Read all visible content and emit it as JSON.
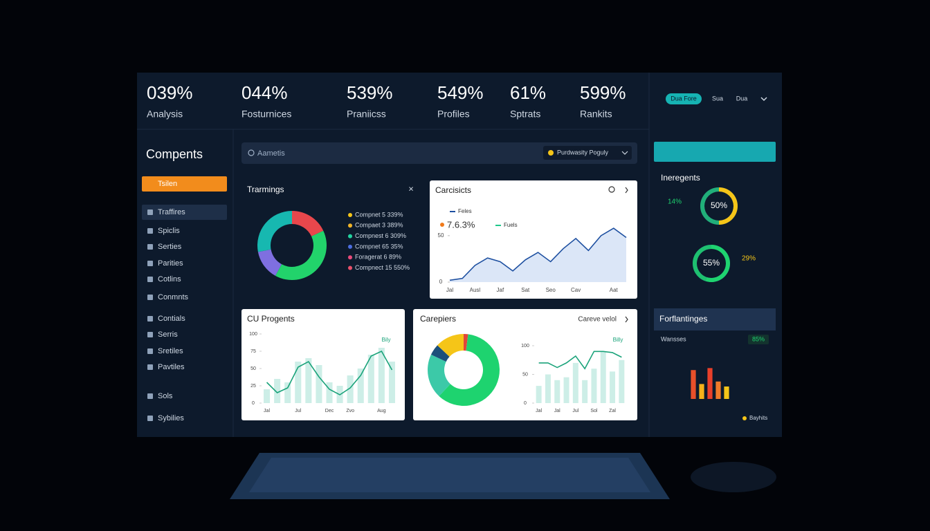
{
  "stats": [
    {
      "value": "039%",
      "label": "Analysis"
    },
    {
      "value": "044%",
      "label": "Fosturnices"
    },
    {
      "value": "539%",
      "label": "Praniicss"
    },
    {
      "value": "549%",
      "label": "Profiles"
    },
    {
      "value": "61%",
      "label": "Sptrats"
    },
    {
      "value": "599%",
      "label": "Rankits"
    }
  ],
  "top_controls": {
    "pill": "Dua Fore",
    "items": [
      "Sua",
      "Dua"
    ]
  },
  "sidebar": {
    "title": "Compents",
    "active": "Tsilen",
    "items": [
      "Traffires",
      "Spiclis",
      "Serties",
      "Parities",
      "Cotlins",
      "Conmnts",
      "Contials",
      "Serris",
      "Sretiles",
      "Pavtiles",
      "Sols",
      "Sybilies"
    ]
  },
  "search": {
    "placeholder": "Aametis",
    "filter": "Purdwasity Poguly"
  },
  "chart_data": [
    {
      "type": "pie",
      "title": "Trarmings",
      "values": [
        18,
        40,
        14,
        28
      ],
      "colors": [
        "#e8474c",
        "#22d36b",
        "#7f6fe0",
        "#17b8b0"
      ],
      "legend": [
        "Compnet 5 339%",
        "Compaet 3 389%",
        "Compnest 6 309%",
        "Compnet 65 35%",
        "Foragerat 6 89%",
        "Compnect 15 550%"
      ],
      "legend_colors": [
        "#f5c518",
        "#f0b429",
        "#22d3a0",
        "#4c6ee0",
        "#e84a7a",
        "#e8506a"
      ]
    },
    {
      "type": "line",
      "title": "Carcisicts",
      "categories": [
        "Jal",
        null,
        "Ausl",
        null,
        "Jaf",
        null,
        "Sat",
        null,
        "Seo",
        null,
        "Cav",
        null,
        null,
        "Aat",
        null
      ],
      "series": [
        {
          "name": "Feles",
          "color": "#1d4fa0",
          "values": [
            2,
            4,
            18,
            26,
            22,
            12,
            24,
            32,
            22,
            36,
            47,
            34,
            50,
            58,
            48
          ]
        }
      ],
      "legend_items": [
        {
          "name": "7.6.3%",
          "color": "#f07a1a"
        },
        {
          "name": "Fuels",
          "color": "#1ec88a"
        }
      ],
      "ylim": [
        0,
        70
      ],
      "yticks": [
        0,
        50
      ]
    },
    {
      "type": "combo",
      "title": "CU Progents",
      "annotation": "Bily",
      "categories": [
        "Jal",
        null,
        null,
        "Jul",
        null,
        null,
        "Dec",
        null,
        "Zvo",
        null,
        null,
        "Aug",
        null
      ],
      "series": [
        {
          "name": "Bars",
          "color": "#cdeee7",
          "values": [
            20,
            35,
            30,
            60,
            65,
            55,
            30,
            25,
            40,
            50,
            70,
            80,
            60
          ]
        },
        {
          "name": "Line",
          "color": "#1aa37a",
          "values": [
            30,
            15,
            22,
            52,
            60,
            38,
            20,
            12,
            22,
            40,
            68,
            75,
            48
          ]
        }
      ],
      "ylim": [
        0,
        100
      ],
      "yticks": [
        0,
        25,
        50,
        75,
        100
      ]
    },
    {
      "type": "pie",
      "title": "Carepiers",
      "link": "Careve velol",
      "values": [
        2,
        60,
        20,
        5,
        13
      ],
      "colors": [
        "#e0463a",
        "#1ed36f",
        "#3cc9a8",
        "#1d4f7a",
        "#f5c518"
      ]
    },
    {
      "type": "combo",
      "annotation": "Billy",
      "categories": [
        "Jal",
        null,
        "Jal",
        null,
        "Jul",
        null,
        "Sol",
        null,
        "Zal",
        null
      ],
      "series": [
        {
          "name": "Bars",
          "color": "#cdeee7",
          "values": [
            30,
            50,
            40,
            45,
            70,
            40,
            60,
            90,
            55,
            75
          ]
        },
        {
          "name": "Line",
          "color": "#1aa37a",
          "values": [
            70,
            70,
            62,
            70,
            82,
            60,
            90,
            90,
            88,
            80
          ]
        }
      ],
      "ylim": [
        0,
        100
      ],
      "yticks": [
        0,
        50,
        100
      ]
    },
    {
      "type": "gauge",
      "title": "Ineregents",
      "items": [
        {
          "value": 50,
          "value_label": "50%",
          "side": "14%",
          "color": "#f5c518"
        },
        {
          "value": 55,
          "value_label": "55%",
          "side": "29%",
          "color": "#1ed36f"
        }
      ]
    },
    {
      "type": "bar",
      "title": "Forflantinges",
      "subtitle": "Wansses",
      "badge": "85%",
      "legend": "Bayhits",
      "values": [
        58,
        30,
        62,
        35,
        25
      ],
      "colors": [
        "#e8502a",
        "#f5b21a",
        "#e8402a",
        "#f07a2a",
        "#f5c518"
      ],
      "ylim": [
        0,
        100
      ]
    }
  ]
}
